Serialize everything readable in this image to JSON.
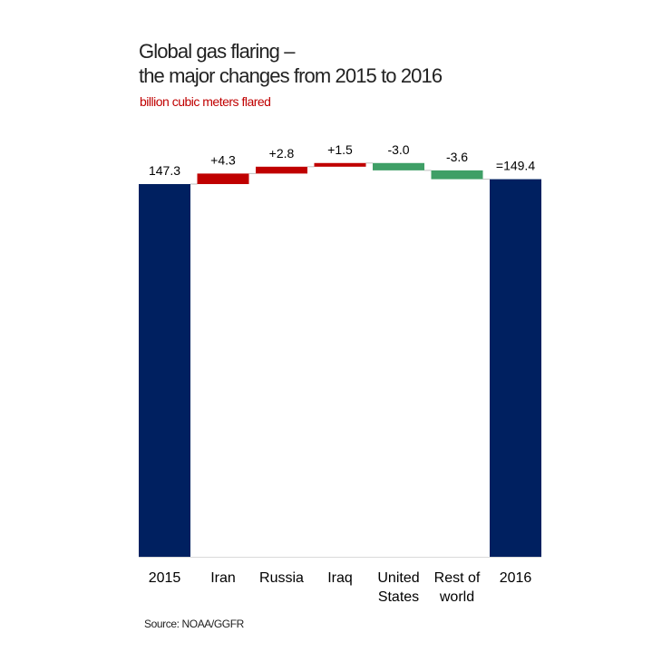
{
  "title_line1": "Global gas flaring –",
  "title_line2": "the major changes from 2015 to 2016",
  "unit_label": "billion cubic meters flared",
  "source": "Source: NOAA/GGFR",
  "colors": {
    "total": "#002060",
    "increase": "#c00000",
    "decrease": "#3f9f66",
    "connector": "#bfbfbf"
  },
  "chart_data": {
    "type": "bar",
    "subtype": "waterfall",
    "categories": [
      "2015",
      "Iran",
      "Russia",
      "Iraq",
      "United States",
      "Rest of world",
      "2016"
    ],
    "category_lines": [
      [
        "2015"
      ],
      [
        "Iran"
      ],
      [
        "Russia"
      ],
      [
        "Iraq"
      ],
      [
        "United",
        "States"
      ],
      [
        "Rest of",
        "world"
      ],
      [
        "2016"
      ]
    ],
    "values": [
      147.3,
      4.3,
      2.8,
      1.5,
      -3.0,
      -3.6,
      149.4
    ],
    "kinds": [
      "total",
      "increase",
      "increase",
      "increase",
      "decrease",
      "decrease",
      "total"
    ],
    "data_labels": [
      "147.3",
      "+4.3",
      "+2.8",
      "+1.5",
      "-3.0",
      "-3.6",
      "=149.4"
    ],
    "title": "Global gas flaring – the major changes from 2015 to 2016",
    "ylabel": "billion cubic meters flared",
    "ylim": [
      0,
      160
    ],
    "grid": false,
    "legend": "none"
  }
}
